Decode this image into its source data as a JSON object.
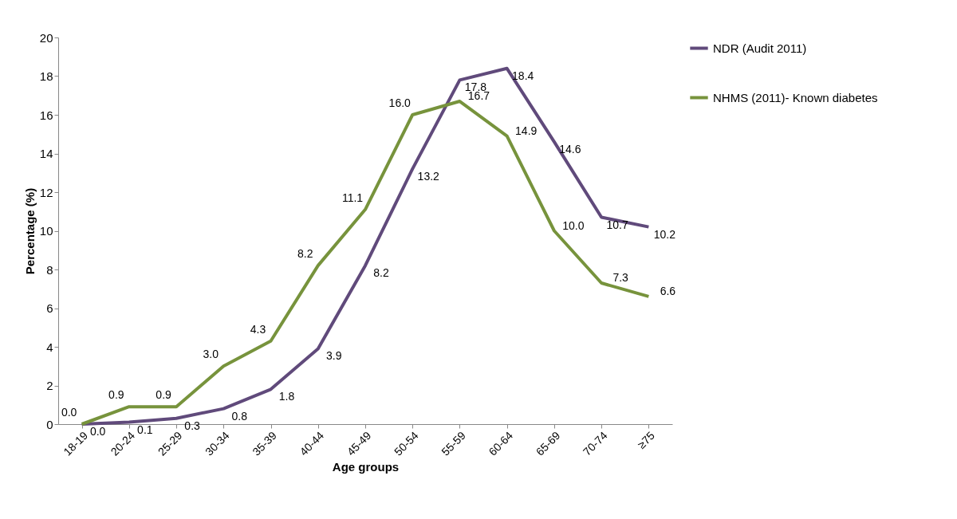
{
  "chart_data": {
    "type": "line",
    "xlabel": "Age groups",
    "ylabel": "Percentage (%)",
    "categories": [
      "18-19",
      "20-24",
      "25-29",
      "30-34",
      "35-39",
      "40-44",
      "45-49",
      "50-54",
      "55-59",
      "60-64",
      "65-69",
      "70-74",
      "≥75"
    ],
    "series": [
      {
        "name": "NDR (Audit 2011)",
        "color": "#604a7b",
        "values": [
          0.0,
          0.1,
          0.3,
          0.8,
          1.8,
          3.9,
          8.2,
          13.2,
          17.8,
          18.4,
          14.6,
          10.7,
          10.2
        ],
        "value_labels": [
          "0.0",
          "0.1",
          "0.3",
          "0.8",
          "1.8",
          "3.9",
          "8.2",
          "13.2",
          "17.8",
          "18.4",
          "14.6",
          "10.7",
          "10.2"
        ]
      },
      {
        "name": "NHMS (2011)- Known diabetes",
        "color": "#77933c",
        "values": [
          0.0,
          0.9,
          0.9,
          3.0,
          4.3,
          8.2,
          11.1,
          16.0,
          16.7,
          14.9,
          10.0,
          7.3,
          6.6
        ],
        "value_labels": [
          "0.0",
          "0.9",
          "0.9",
          "3.0",
          "4.3",
          "8.2",
          "11.1",
          "16.0",
          "16.7",
          "14.9",
          "10.0",
          "7.3",
          "6.6"
        ]
      }
    ],
    "ylim": [
      0,
      20
    ],
    "yticks": [
      0,
      2,
      4,
      6,
      8,
      10,
      12,
      14,
      16,
      18,
      20
    ],
    "grid": false,
    "legend": "right",
    "marker": "none",
    "line_style": "solid"
  }
}
